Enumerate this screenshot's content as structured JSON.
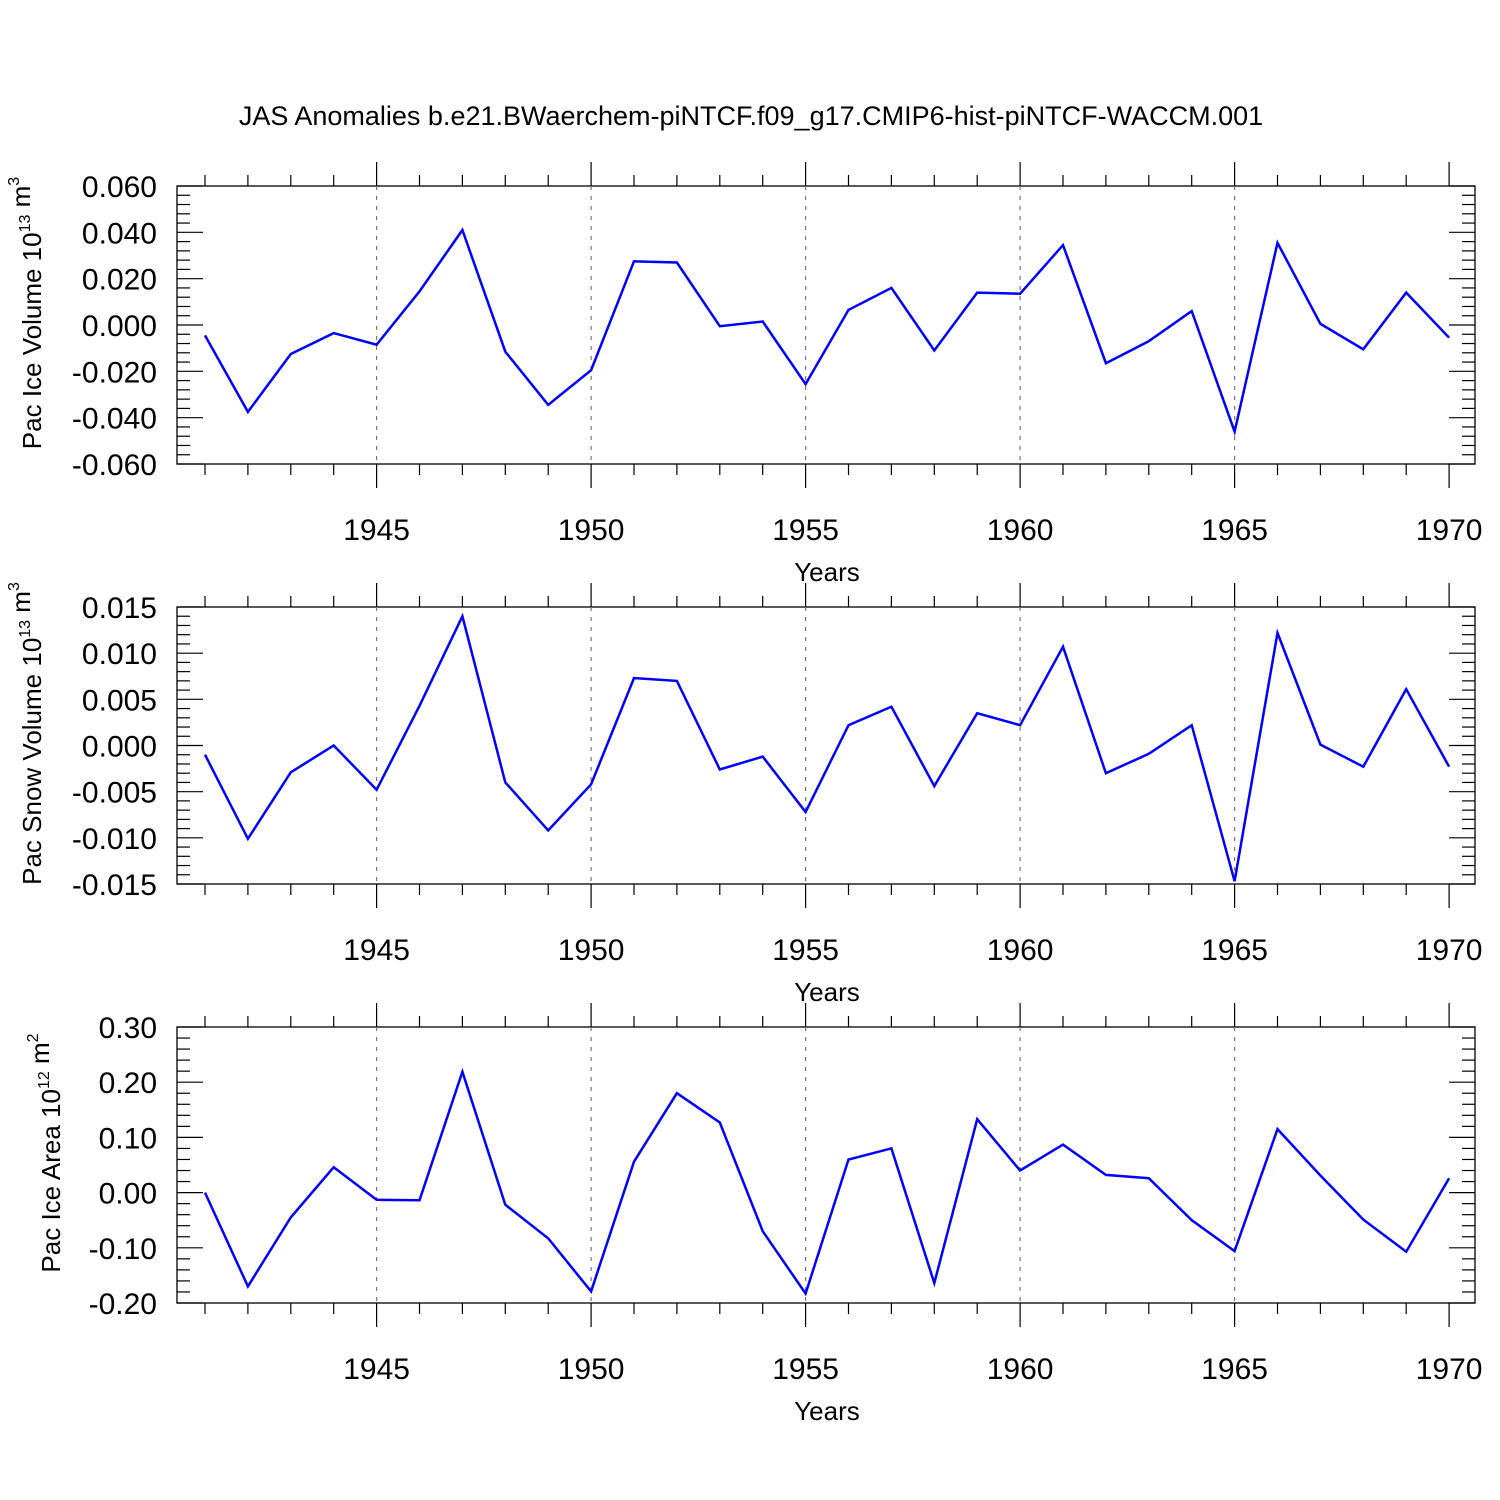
{
  "title": "JAS Anomalies b.e21.BWaerchem-piNTCF.f09_g17.CMIP6-hist-piNTCF-WACCM.001",
  "chart_data": [
    {
      "type": "line",
      "ylabel": "Pac Ice Volume 10",
      "ylabel_exp": "13",
      "ylabel_unit": " m",
      "ylabel_unit_exp": "3",
      "xlabel": "Years",
      "xlim": [
        1941,
        1970
      ],
      "ylim": [
        -0.06,
        0.06
      ],
      "yticks": [
        -0.06,
        -0.04,
        -0.02,
        0.0,
        0.02,
        0.04,
        0.06
      ],
      "ytick_labels": [
        "-0.060",
        "-0.040",
        "-0.020",
        "0.000",
        "0.020",
        "0.040",
        "0.060"
      ],
      "xticks": [
        1945,
        1950,
        1955,
        1960,
        1965,
        1970
      ],
      "xtick_labels": [
        "1945",
        "1950",
        "1955",
        "1960",
        "1965",
        "1970"
      ],
      "x": [
        1941,
        1942,
        1943,
        1944,
        1945,
        1946,
        1947,
        1948,
        1949,
        1950,
        1951,
        1952,
        1953,
        1954,
        1955,
        1956,
        1957,
        1958,
        1959,
        1960,
        1961,
        1962,
        1963,
        1964,
        1965,
        1966,
        1967,
        1968,
        1969,
        1970
      ],
      "values": [
        -0.0045,
        -0.0375,
        -0.0125,
        -0.0035,
        -0.0085,
        0.0145,
        0.041,
        -0.0115,
        -0.0345,
        -0.0195,
        0.0275,
        0.027,
        -0.0005,
        0.0015,
        -0.0255,
        0.0065,
        0.016,
        -0.011,
        0.014,
        0.0135,
        0.0345,
        -0.0165,
        -0.007,
        0.006,
        -0.046,
        0.0355,
        0.0005,
        -0.0105,
        0.014,
        -0.0055
      ],
      "color": "#0000ff"
    },
    {
      "type": "line",
      "ylabel": "Pac Snow Volume 10",
      "ylabel_exp": "13",
      "ylabel_unit": " m",
      "ylabel_unit_exp": "3",
      "xlabel": "Years",
      "xlim": [
        1941,
        1970
      ],
      "ylim": [
        -0.015,
        0.015
      ],
      "yticks": [
        -0.015,
        -0.01,
        -0.005,
        0.0,
        0.005,
        0.01,
        0.015
      ],
      "ytick_labels": [
        "-0.015",
        "-0.010",
        "-0.005",
        "0.000",
        "0.005",
        "0.010",
        "0.015"
      ],
      "xticks": [
        1945,
        1950,
        1955,
        1960,
        1965,
        1970
      ],
      "xtick_labels": [
        "1945",
        "1950",
        "1955",
        "1960",
        "1965",
        "1970"
      ],
      "x": [
        1941,
        1942,
        1943,
        1944,
        1945,
        1946,
        1947,
        1948,
        1949,
        1950,
        1951,
        1952,
        1953,
        1954,
        1955,
        1956,
        1957,
        1958,
        1959,
        1960,
        1961,
        1962,
        1963,
        1964,
        1965,
        1966,
        1967,
        1968,
        1969,
        1970
      ],
      "values": [
        -0.001,
        -0.0101,
        -0.0029,
        0.0,
        -0.0048,
        0.0043,
        0.014,
        -0.004,
        -0.0092,
        -0.0042,
        0.0073,
        0.007,
        -0.0026,
        -0.0012,
        -0.0072,
        0.0022,
        0.0042,
        -0.0044,
        0.0035,
        0.0022,
        0.0107,
        -0.003,
        -0.0009,
        0.0022,
        -0.0147,
        0.0122,
        0.0001,
        -0.0023,
        0.0061,
        -0.0023
      ],
      "color": "#0000ff"
    },
    {
      "type": "line",
      "ylabel": "Pac Ice Area 10",
      "ylabel_exp": "12",
      "ylabel_unit": " m",
      "ylabel_unit_exp": "2",
      "xlabel": "Years",
      "xlim": [
        1941,
        1970
      ],
      "ylim": [
        -0.2,
        0.3
      ],
      "yticks": [
        -0.2,
        -0.1,
        0.0,
        0.1,
        0.2,
        0.3
      ],
      "ytick_labels": [
        "-0.20",
        "-0.10",
        "0.00",
        "0.10",
        "0.20",
        "0.30"
      ],
      "xticks": [
        1945,
        1950,
        1955,
        1960,
        1965,
        1970
      ],
      "xtick_labels": [
        "1945",
        "1950",
        "1955",
        "1960",
        "1965",
        "1970"
      ],
      "x": [
        1941,
        1942,
        1943,
        1944,
        1945,
        1946,
        1947,
        1948,
        1949,
        1950,
        1951,
        1952,
        1953,
        1954,
        1955,
        1956,
        1957,
        1958,
        1959,
        1960,
        1961,
        1962,
        1963,
        1964,
        1965,
        1966,
        1967,
        1968,
        1969,
        1970
      ],
      "values": [
        0.0,
        -0.17,
        -0.045,
        0.046,
        -0.013,
        -0.014,
        0.219,
        -0.022,
        -0.083,
        -0.179,
        0.056,
        0.18,
        0.127,
        -0.07,
        -0.183,
        0.06,
        0.08,
        -0.164,
        0.133,
        0.04,
        0.087,
        0.032,
        0.026,
        -0.05,
        -0.106,
        0.115,
        0.031,
        -0.049,
        -0.107,
        0.026
      ],
      "color": "#0000ff"
    }
  ]
}
